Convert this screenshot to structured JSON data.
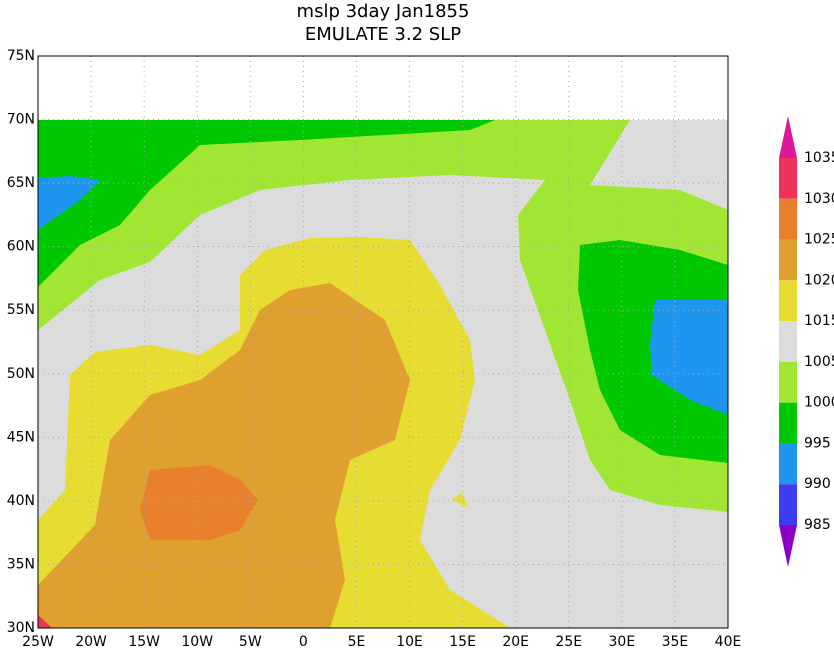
{
  "title": "mslp 3day Jan1855",
  "subtitle": "EMULATE 3.2 SLP",
  "map": {
    "lon_labels": [
      "25W",
      "20W",
      "15W",
      "10W",
      "5W",
      "0",
      "5E",
      "10E",
      "15E",
      "20E",
      "25E",
      "30E",
      "35E",
      "40E"
    ],
    "lat_labels": [
      "75N",
      "70N",
      "65N",
      "60N",
      "55N",
      "50N",
      "45N",
      "40N",
      "35N",
      "30N"
    ]
  },
  "colorbar": {
    "levels": [
      1035,
      1030,
      1025,
      1020,
      1015,
      1005,
      1000,
      995,
      990,
      985
    ],
    "colors": [
      "#e0169a",
      "#f0325a",
      "#e8802c",
      "#e0a030",
      "#e6dc32",
      "#dcdcdc",
      "#a0e632",
      "#00c800",
      "#1e96f0",
      "#3c3cf0",
      "#8c00c8"
    ]
  }
}
